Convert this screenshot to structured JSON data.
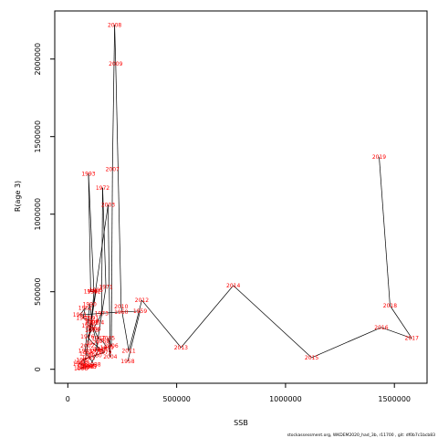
{
  "chart_data": {
    "type": "line",
    "xlabel": "SSB",
    "ylabel": "R(age 3)",
    "xlim": [
      -60000,
      1650000
    ],
    "ylim": [
      -90000,
      2310000
    ],
    "xticks": [
      0,
      500000,
      1000000,
      1500000
    ],
    "xtick_labels": [
      "0",
      "500000",
      "1000000",
      "1500000"
    ],
    "yticks": [
      0,
      500000,
      1000000,
      1500000,
      2000000
    ],
    "ytick_labels": [
      "0",
      "500000",
      "1000000",
      "1500000",
      "2000000"
    ],
    "grid": false,
    "line_color": "#000000",
    "label_color": "#ff0000",
    "points": [
      {
        "year": "1958",
        "x": 275000,
        "y": 50000
      },
      {
        "year": "1959",
        "x": 332000,
        "y": 375000
      },
      {
        "year": "1960",
        "x": 245000,
        "y": 370000
      },
      {
        "year": "1961",
        "x": 55000,
        "y": 350000
      },
      {
        "year": "1962",
        "x": 80000,
        "y": 395000
      },
      {
        "year": "1963",
        "x": 70000,
        "y": 330000
      },
      {
        "year": "1964",
        "x": 110000,
        "y": 310000
      },
      {
        "year": "1965",
        "x": 95000,
        "y": 280000
      },
      {
        "year": "1966",
        "x": 120000,
        "y": 260000
      },
      {
        "year": "1967",
        "x": 140000,
        "y": 200000
      },
      {
        "year": "1968",
        "x": 160000,
        "y": 180000
      },
      {
        "year": "1969",
        "x": 180000,
        "y": 140000
      },
      {
        "year": "1970",
        "x": 130000,
        "y": 120000
      },
      {
        "year": "1971",
        "x": 175000,
        "y": 530000
      },
      {
        "year": "1972",
        "x": 160000,
        "y": 1170000
      },
      {
        "year": "1973",
        "x": 155000,
        "y": 360000
      },
      {
        "year": "1974",
        "x": 135000,
        "y": 300000
      },
      {
        "year": "1975",
        "x": 110000,
        "y": 250000
      },
      {
        "year": "1976",
        "x": 90000,
        "y": 210000
      },
      {
        "year": "1977",
        "x": 115000,
        "y": 170000
      },
      {
        "year": "1978",
        "x": 150000,
        "y": 130000
      },
      {
        "year": "1979",
        "x": 170000,
        "y": 110000
      },
      {
        "year": "1980",
        "x": 125000,
        "y": 90000
      },
      {
        "year": "1981",
        "x": 95000,
        "y": 75000
      },
      {
        "year": "1982",
        "x": 70000,
        "y": 60000
      },
      {
        "year": "1983",
        "x": 60000,
        "y": 45000
      },
      {
        "year": "1984",
        "x": 55000,
        "y": 35000
      },
      {
        "year": "1985",
        "x": 75000,
        "y": 25000
      },
      {
        "year": "1986",
        "x": 85000,
        "y": 20000
      },
      {
        "year": "1987",
        "x": 105000,
        "y": 15000
      },
      {
        "year": "1988",
        "x": 120000,
        "y": 30000
      },
      {
        "year": "1989",
        "x": 80000,
        "y": 120000
      },
      {
        "year": "1990",
        "x": 100000,
        "y": 420000
      },
      {
        "year": "1991",
        "x": 110000,
        "y": 330000
      },
      {
        "year": "1992",
        "x": 120000,
        "y": 500000
      },
      {
        "year": "1993",
        "x": 95000,
        "y": 1260000
      },
      {
        "year": "1994",
        "x": 105000,
        "y": 500000
      },
      {
        "year": "1995",
        "x": 130000,
        "y": 510000
      },
      {
        "year": "1996",
        "x": 85000,
        "y": 100000
      },
      {
        "year": "1997",
        "x": 70000,
        "y": 10000
      },
      {
        "year": "1998",
        "x": 60000,
        "y": 5000
      },
      {
        "year": "1999",
        "x": 100000,
        "y": 20000
      },
      {
        "year": "2000",
        "x": 140000,
        "y": 120000
      },
      {
        "year": "2001",
        "x": 110000,
        "y": 300000
      },
      {
        "year": "2002",
        "x": 90000,
        "y": 150000
      },
      {
        "year": "2003",
        "x": 185000,
        "y": 1060000
      },
      {
        "year": "2004",
        "x": 195000,
        "y": 80000
      },
      {
        "year": "2005",
        "x": 185000,
        "y": 200000
      },
      {
        "year": "2006",
        "x": 200000,
        "y": 150000
      },
      {
        "year": "2007",
        "x": 205000,
        "y": 1290000
      },
      {
        "year": "2008",
        "x": 215000,
        "y": 2220000
      },
      {
        "year": "2009",
        "x": 220000,
        "y": 1970000
      },
      {
        "year": "2010",
        "x": 245000,
        "y": 405000
      },
      {
        "year": "2011",
        "x": 280000,
        "y": 120000
      },
      {
        "year": "2012",
        "x": 340000,
        "y": 445000
      },
      {
        "year": "2013",
        "x": 520000,
        "y": 140000
      },
      {
        "year": "2014",
        "x": 760000,
        "y": 540000
      },
      {
        "year": "2015",
        "x": 1120000,
        "y": 75000
      },
      {
        "year": "2016",
        "x": 1440000,
        "y": 270000
      },
      {
        "year": "2017",
        "x": 1580000,
        "y": 200000
      },
      {
        "year": "2018",
        "x": 1480000,
        "y": 410000
      },
      {
        "year": "2019",
        "x": 1430000,
        "y": 1370000
      }
    ]
  },
  "credit": "stockassessment.org,  WKDEM2020_had_3b,  r11700 ,  git:  df0b7c1bcb83"
}
